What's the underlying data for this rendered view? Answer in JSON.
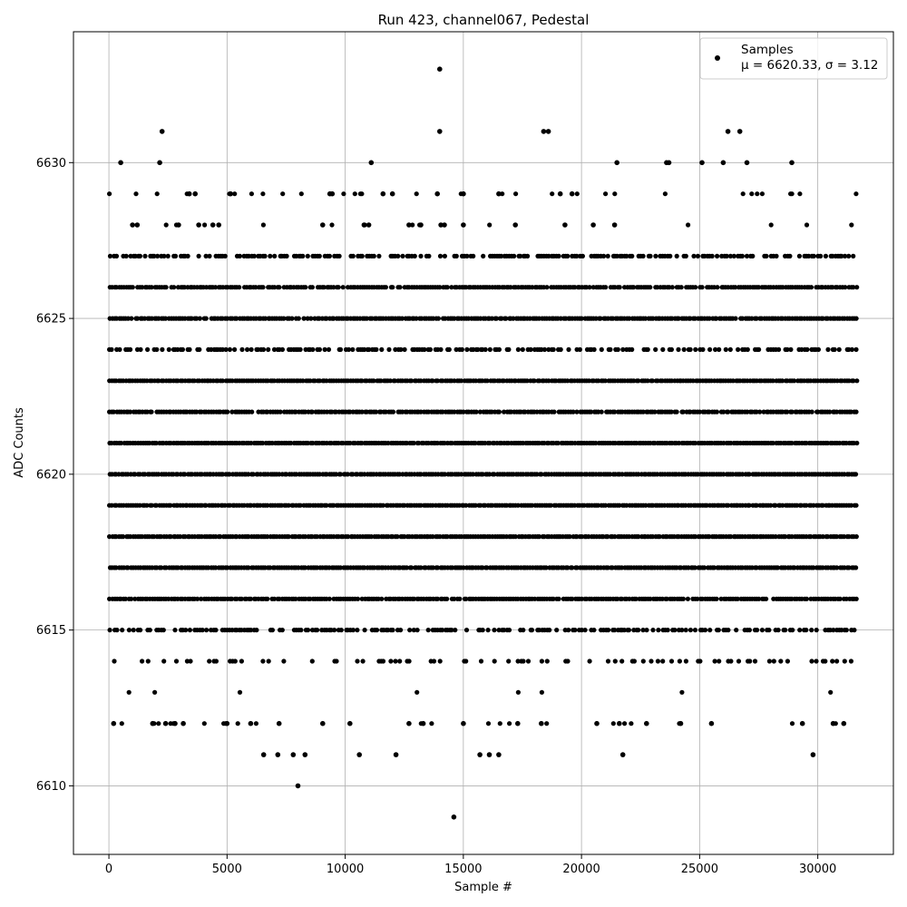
{
  "chart_data": {
    "type": "scatter",
    "title": "Run 423, channel067, Pedestal",
    "xlabel": "Sample #",
    "ylabel": "ADC Counts",
    "xlim": [
      -1500,
      33200
    ],
    "ylim": [
      6607.8,
      6634.2
    ],
    "xticks": [
      0,
      5000,
      10000,
      15000,
      20000,
      25000,
      30000
    ],
    "yticks": [
      6610,
      6615,
      6620,
      6625,
      6630
    ],
    "grid": true,
    "legend_position": "top-right",
    "marker_color": "#000000",
    "sample_count": 31600,
    "series": [
      {
        "name": "Samples",
        "stats_label": "μ = 6620.33, σ = 3.12",
        "mean": 6620.33,
        "std": 3.12,
        "dense_levels": [
          6614,
          6615,
          6616,
          6617,
          6618,
          6619,
          6620,
          6621,
          6622,
          6623,
          6624,
          6625,
          6626,
          6627
        ],
        "level_density": {
          "6613": 0.03,
          "6614": 0.25,
          "6615": 0.55,
          "6616": 0.95,
          "6617": 1.0,
          "6618": 1.0,
          "6619": 1.0,
          "6620": 1.0,
          "6621": 1.0,
          "6622": 0.95,
          "6623": 1.0,
          "6624": 0.6,
          "6625": 0.95,
          "6626": 0.9,
          "6627": 0.65,
          "6628": 0.05,
          "6629": 0.08,
          "6612": 0.06
        },
        "outliers": [
          {
            "x": 14000,
            "y": 6633
          },
          {
            "x": 2250,
            "y": 6631
          },
          {
            "x": 14000,
            "y": 6631
          },
          {
            "x": 18400,
            "y": 6631
          },
          {
            "x": 18600,
            "y": 6631
          },
          {
            "x": 26200,
            "y": 6631
          },
          {
            "x": 26700,
            "y": 6631
          },
          {
            "x": 500,
            "y": 6630
          },
          {
            "x": 2150,
            "y": 6630
          },
          {
            "x": 11100,
            "y": 6630
          },
          {
            "x": 21500,
            "y": 6630
          },
          {
            "x": 23600,
            "y": 6630
          },
          {
            "x": 23700,
            "y": 6630
          },
          {
            "x": 25100,
            "y": 6630
          },
          {
            "x": 26000,
            "y": 6630
          },
          {
            "x": 27000,
            "y": 6630
          },
          {
            "x": 28900,
            "y": 6630
          },
          {
            "x": 1000,
            "y": 6628
          },
          {
            "x": 1200,
            "y": 6628
          },
          {
            "x": 2950,
            "y": 6628
          },
          {
            "x": 3800,
            "y": 6628
          },
          {
            "x": 4400,
            "y": 6628
          },
          {
            "x": 4650,
            "y": 6628
          },
          {
            "x": 9050,
            "y": 6628
          },
          {
            "x": 10800,
            "y": 6628
          },
          {
            "x": 11000,
            "y": 6628
          },
          {
            "x": 12700,
            "y": 6628
          },
          {
            "x": 13200,
            "y": 6628
          },
          {
            "x": 14050,
            "y": 6628
          },
          {
            "x": 14200,
            "y": 6628
          },
          {
            "x": 15000,
            "y": 6628
          },
          {
            "x": 17200,
            "y": 6628
          },
          {
            "x": 19300,
            "y": 6628
          },
          {
            "x": 20500,
            "y": 6628
          },
          {
            "x": 21400,
            "y": 6628
          },
          {
            "x": 5150,
            "y": 6629
          },
          {
            "x": 3400,
            "y": 6629
          },
          {
            "x": 3650,
            "y": 6629
          },
          {
            "x": 9350,
            "y": 6629
          },
          {
            "x": 9450,
            "y": 6629
          },
          {
            "x": 11600,
            "y": 6629
          },
          {
            "x": 12000,
            "y": 6629
          },
          {
            "x": 13900,
            "y": 6629
          },
          {
            "x": 15000,
            "y": 6629
          },
          {
            "x": 16500,
            "y": 6629
          },
          {
            "x": 19100,
            "y": 6629
          },
          {
            "x": 19600,
            "y": 6629
          },
          {
            "x": 8000,
            "y": 6610
          },
          {
            "x": 14600,
            "y": 6609
          },
          {
            "x": 6550,
            "y": 6611
          },
          {
            "x": 7150,
            "y": 6611
          },
          {
            "x": 7800,
            "y": 6611
          },
          {
            "x": 8300,
            "y": 6611
          },
          {
            "x": 10600,
            "y": 6611
          },
          {
            "x": 12150,
            "y": 6611
          },
          {
            "x": 15700,
            "y": 6611
          },
          {
            "x": 16100,
            "y": 6611
          },
          {
            "x": 16500,
            "y": 6611
          },
          {
            "x": 21750,
            "y": 6611
          },
          {
            "x": 29800,
            "y": 6611
          },
          {
            "x": 200,
            "y": 6612
          },
          {
            "x": 1850,
            "y": 6612
          },
          {
            "x": 2400,
            "y": 6612
          },
          {
            "x": 2800,
            "y": 6612
          },
          {
            "x": 3150,
            "y": 6612
          },
          {
            "x": 5000,
            "y": 6612
          },
          {
            "x": 6000,
            "y": 6612
          },
          {
            "x": 7200,
            "y": 6612
          },
          {
            "x": 9050,
            "y": 6612
          },
          {
            "x": 10200,
            "y": 6612
          },
          {
            "x": 12700,
            "y": 6612
          },
          {
            "x": 13300,
            "y": 6612
          },
          {
            "x": 15000,
            "y": 6612
          },
          {
            "x": 17300,
            "y": 6612
          },
          {
            "x": 18300,
            "y": 6612
          },
          {
            "x": 20650,
            "y": 6612
          },
          {
            "x": 21600,
            "y": 6612
          },
          {
            "x": 22750,
            "y": 6612
          },
          {
            "x": 24200,
            "y": 6612
          },
          {
            "x": 25500,
            "y": 6612
          },
          {
            "x": 29350,
            "y": 6612
          },
          {
            "x": 30650,
            "y": 6612
          },
          {
            "x": 31100,
            "y": 6612
          }
        ]
      }
    ]
  }
}
